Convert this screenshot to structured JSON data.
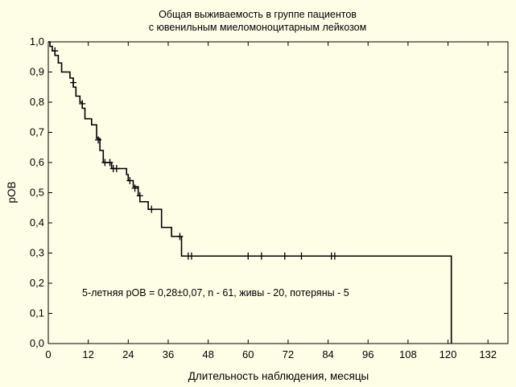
{
  "chart_data": {
    "type": "line",
    "subtype": "kaplan-meier",
    "title_lines": [
      "Общая выживаемость в группе пациентов",
      "с  ювенильным миеломоноцитарным лейкозом"
    ],
    "xlabel": "Длительность наблюдения, месяцы",
    "ylabel": "pОВ",
    "xlim": [
      0,
      138
    ],
    "ylim": [
      0,
      1
    ],
    "x_ticks": [
      0,
      12,
      24,
      36,
      48,
      60,
      72,
      84,
      96,
      108,
      120,
      132
    ],
    "y_ticks": [
      0,
      0.1,
      0.2,
      0.3,
      0.4,
      0.5,
      0.6,
      0.7,
      0.8,
      0.9,
      1.0
    ],
    "y_tick_labels": [
      "0,0",
      "0,1",
      "0,2",
      "0,3",
      "0,4",
      "0,5",
      "0,6",
      "0,7",
      "0,8",
      "0,9",
      "1,0"
    ],
    "x_tick_labels": [
      "0",
      "12",
      "24",
      "36",
      "48",
      "60",
      "72",
      "84",
      "96",
      "108",
      "120",
      "132"
    ],
    "grid": false,
    "annotation": "5-летняя pОВ = 0,28±0,07, n - 61, живы - 20, потеряны - 5",
    "series": [
      {
        "steps": [
          [
            0,
            1.0
          ],
          [
            0.5,
            0.985
          ],
          [
            1.2,
            0.97
          ],
          [
            2,
            0.955
          ],
          [
            3,
            0.93
          ],
          [
            4,
            0.9
          ],
          [
            6.5,
            0.88
          ],
          [
            7.5,
            0.85
          ],
          [
            8.3,
            0.82
          ],
          [
            9.5,
            0.8
          ],
          [
            10.2,
            0.78
          ],
          [
            11,
            0.745
          ],
          [
            13,
            0.725
          ],
          [
            14.5,
            0.68
          ],
          [
            15.5,
            0.64
          ],
          [
            16.5,
            0.6
          ],
          [
            19,
            0.58
          ],
          [
            23.5,
            0.56
          ],
          [
            24,
            0.54
          ],
          [
            25.5,
            0.52
          ],
          [
            27,
            0.49
          ],
          [
            27.5,
            0.47
          ],
          [
            30,
            0.445
          ],
          [
            34,
            0.385
          ],
          [
            37,
            0.355
          ],
          [
            40,
            0.29
          ],
          [
            121,
            0.0
          ]
        ],
        "x_end": 121,
        "censored": [
          [
            2,
            0.97
          ],
          [
            7.5,
            0.865
          ],
          [
            10.2,
            0.795
          ],
          [
            15,
            0.675
          ],
          [
            17,
            0.6
          ],
          [
            18.5,
            0.6
          ],
          [
            19.5,
            0.58
          ],
          [
            20.5,
            0.58
          ],
          [
            24.5,
            0.54
          ],
          [
            26,
            0.515
          ],
          [
            27.5,
            0.49
          ],
          [
            31,
            0.445
          ],
          [
            39.5,
            0.355
          ],
          [
            42,
            0.29
          ],
          [
            43,
            0.29
          ],
          [
            60,
            0.29
          ],
          [
            64,
            0.29
          ],
          [
            71,
            0.29
          ],
          [
            76,
            0.29
          ],
          [
            85,
            0.29
          ],
          [
            86,
            0.29
          ]
        ]
      }
    ]
  }
}
